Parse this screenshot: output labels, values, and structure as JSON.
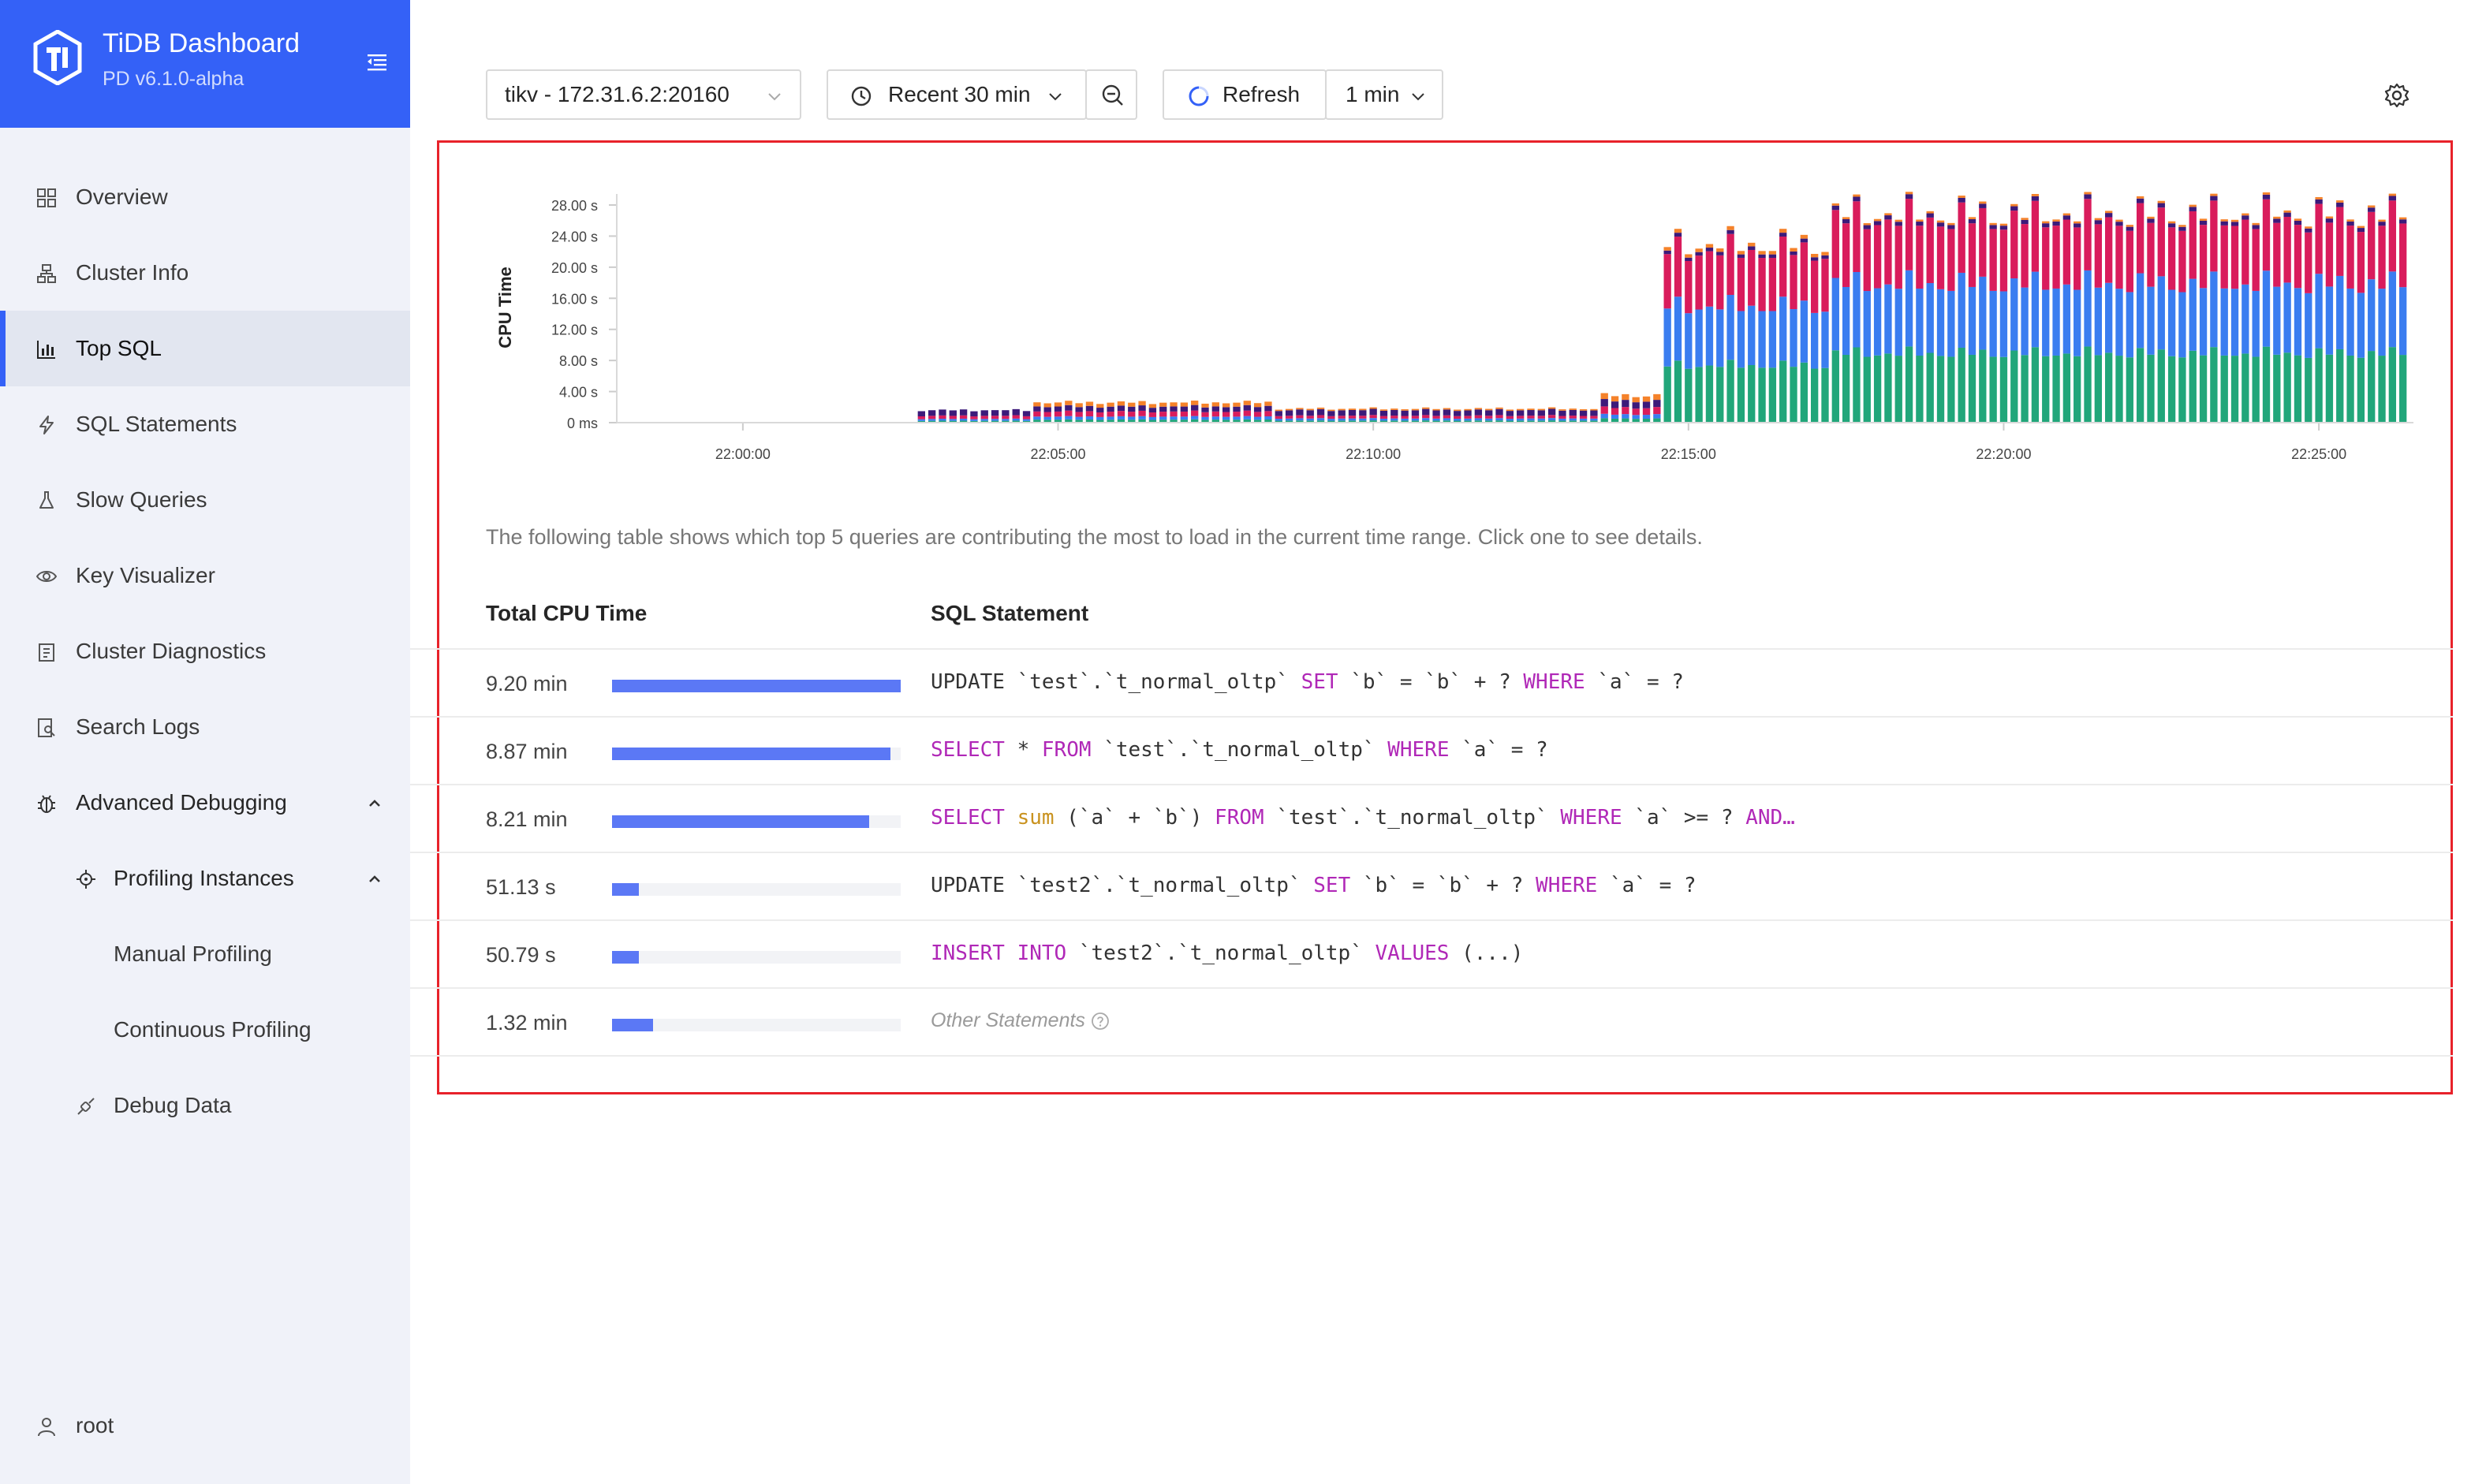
{
  "brand": {
    "title": "TiDB Dashboard",
    "version": "PD v6.1.0-alpha"
  },
  "sidebar": {
    "items": [
      {
        "label": "Overview",
        "icon": "dashboard-icon"
      },
      {
        "label": "Cluster Info",
        "icon": "cluster-icon"
      },
      {
        "label": "Top SQL",
        "icon": "bar-chart-icon",
        "active": true
      },
      {
        "label": "SQL Statements",
        "icon": "thunderbolt-icon"
      },
      {
        "label": "Slow Queries",
        "icon": "experiment-icon"
      },
      {
        "label": "Key Visualizer",
        "icon": "eye-icon"
      },
      {
        "label": "Cluster Diagnostics",
        "icon": "diagnose-icon"
      },
      {
        "label": "Search Logs",
        "icon": "file-search-icon"
      },
      {
        "label": "Advanced Debugging",
        "icon": "bug-icon"
      },
      {
        "label": "Profiling Instances",
        "icon": "aim-icon"
      },
      {
        "label": "Manual Profiling"
      },
      {
        "label": "Continuous Profiling"
      },
      {
        "label": "Debug Data",
        "icon": "api-icon"
      }
    ],
    "user": "root"
  },
  "toolbar": {
    "instance": "tikv - 172.31.6.2:20160",
    "time_range": "Recent 30 min",
    "refresh_label": "Refresh",
    "interval": "1 min"
  },
  "description": "The following table shows which top 5 queries are contributing the most to load in the current time range. Click one to see details.",
  "table": {
    "headers": {
      "cpu": "Total CPU Time",
      "sql": "SQL Statement"
    },
    "rows": [
      {
        "cpu": "9.20 min",
        "ratio": 1.0
      },
      {
        "cpu": "8.87 min",
        "ratio": 0.964
      },
      {
        "cpu": "8.21 min",
        "ratio": 0.892
      },
      {
        "cpu": "51.13 s",
        "ratio": 0.093
      },
      {
        "cpu": "50.79 s",
        "ratio": 0.092
      },
      {
        "cpu": "1.32 min",
        "ratio": 0.143
      }
    ],
    "sql": {
      "r0": {
        "a": "UPDATE `test`.`t_normal_oltp` ",
        "kw1": "SET",
        "b": " `b` = `b` + ? ",
        "kw2": "WHERE",
        "c": " `a` = ?"
      },
      "r1": {
        "kw1": "SELECT",
        "a": " * ",
        "kw2": "FROM",
        "b": " `test`.`t_normal_oltp` ",
        "kw3": "WHERE",
        "c": " `a` = ?"
      },
      "r2": {
        "kw1": "SELECT",
        "fn": "sum",
        "a": " (`a` + `b`) ",
        "kw2": "FROM",
        "b": " `test`.`t_normal_oltp` ",
        "kw3": "WHERE",
        "c": " `a` >= ? ",
        "kw4": "AND…"
      },
      "r3": {
        "a": "UPDATE `test2`.`t_normal_oltp` ",
        "kw1": "SET",
        "b": " `b` = `b` + ? ",
        "kw2": "WHERE",
        "c": " `a` = ?"
      },
      "r4": {
        "kw1": "INSERT INTO",
        "a": " `test2`.`t_normal_oltp` ",
        "kw2": "VALUES",
        "b": " (...)"
      },
      "other": "Other Statements"
    }
  },
  "chart_data": {
    "type": "bar",
    "stacked": true,
    "ylabel": "CPU Time",
    "ylim": [
      0,
      28
    ],
    "yticks": [
      "0 ms",
      "4.00 s",
      "8.00 s",
      "12.00 s",
      "16.00 s",
      "20.00 s",
      "24.00 s",
      "28.00 s"
    ],
    "xticks": [
      "22:00:00",
      "22:05:00",
      "22:10:00",
      "22:15:00",
      "22:20:00",
      "22:25:00"
    ],
    "x_range": [
      "21:58:00",
      "22:26:30"
    ],
    "grid": false,
    "colors": [
      "#21a67a",
      "#3a7df0",
      "#d91c5c",
      "#3c1a7a",
      "#f5822a"
    ],
    "segments": [
      {
        "from": "21:58:00",
        "to": "22:02:50",
        "totals_s": 0
      },
      {
        "from": "22:02:50",
        "to": "22:04:40",
        "totals_s": 1.6,
        "composition": [
          0.15,
          0.15,
          0.25,
          0.45,
          0.0
        ]
      },
      {
        "from": "22:04:40",
        "to": "22:08:30",
        "totals_s": 2.6,
        "composition": [
          0.15,
          0.15,
          0.25,
          0.25,
          0.2
        ]
      },
      {
        "from": "22:08:30",
        "to": "22:13:40",
        "totals_s": 1.8,
        "composition": [
          0.15,
          0.15,
          0.2,
          0.4,
          0.1
        ]
      },
      {
        "from": "22:13:40",
        "to": "22:14:40",
        "totals_s": 3.5,
        "composition": [
          0.15,
          0.15,
          0.25,
          0.25,
          0.2
        ]
      },
      {
        "from": "22:14:40",
        "to": "22:17:20",
        "totals_s": 23.0,
        "composition": [
          0.32,
          0.33,
          0.31,
          0.02,
          0.02
        ]
      },
      {
        "from": "22:17:20",
        "to": "22:26:30",
        "totals_s": 27.0,
        "composition": [
          0.33,
          0.33,
          0.31,
          0.02,
          0.01
        ]
      }
    ]
  }
}
